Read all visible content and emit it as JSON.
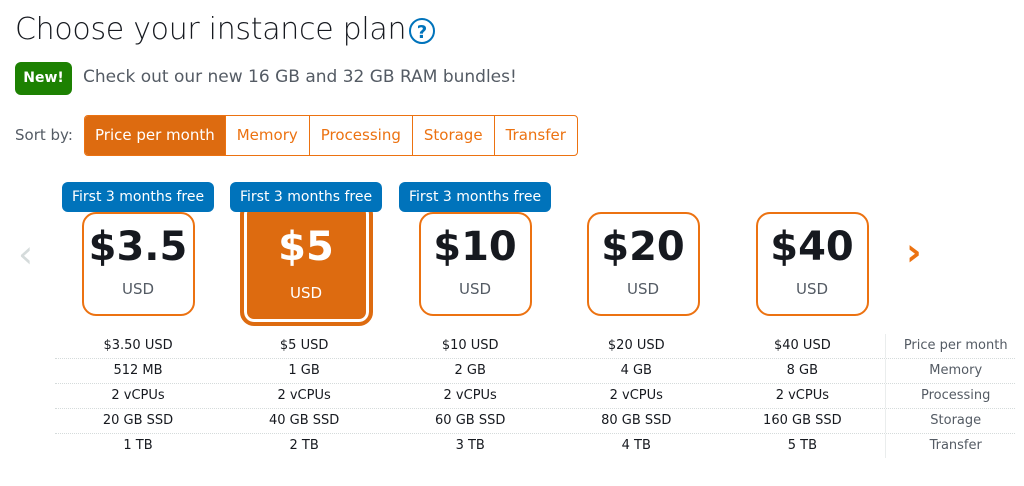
{
  "header": {
    "title": "Choose your instance plan",
    "help_icon": "question-circle-icon"
  },
  "notice": {
    "badge": "New!",
    "text": "Check out our new 16 GB and 32 GB RAM bundles!"
  },
  "sort": {
    "label": "Sort by:",
    "tabs": [
      "Price per month",
      "Memory",
      "Processing",
      "Storage",
      "Transfer"
    ],
    "active": 0
  },
  "carousel": {
    "prev_icon": "chevron-left-icon",
    "next_icon": "chevron-right-icon"
  },
  "plans": [
    {
      "price": "$3.5",
      "currency": "USD",
      "badge": "First 3 months free",
      "selected": false,
      "specs": [
        "$3.50 USD",
        "512 MB",
        "2 vCPUs",
        "20 GB SSD",
        "1 TB"
      ]
    },
    {
      "price": "$5",
      "currency": "USD",
      "badge": "First 3 months free",
      "selected": true,
      "specs": [
        "$5 USD",
        "1 GB",
        "2 vCPUs",
        "40 GB SSD",
        "2 TB"
      ]
    },
    {
      "price": "$10",
      "currency": "USD",
      "badge": "First 3 months free",
      "selected": false,
      "specs": [
        "$10 USD",
        "2 GB",
        "2 vCPUs",
        "60 GB SSD",
        "3 TB"
      ]
    },
    {
      "price": "$20",
      "currency": "USD",
      "badge": null,
      "selected": false,
      "specs": [
        "$20 USD",
        "4 GB",
        "2 vCPUs",
        "80 GB SSD",
        "4 TB"
      ]
    },
    {
      "price": "$40",
      "currency": "USD",
      "badge": null,
      "selected": false,
      "specs": [
        "$40 USD",
        "8 GB",
        "2 vCPUs",
        "160 GB SSD",
        "5 TB"
      ]
    }
  ],
  "spec_labels": [
    "Price per month",
    "Memory",
    "Processing",
    "Storage",
    "Transfer"
  ],
  "colors": {
    "accent": "#ec7211",
    "selected": "#dd6b10",
    "badge_blue": "#0073bb",
    "new_green": "#1d8102"
  }
}
